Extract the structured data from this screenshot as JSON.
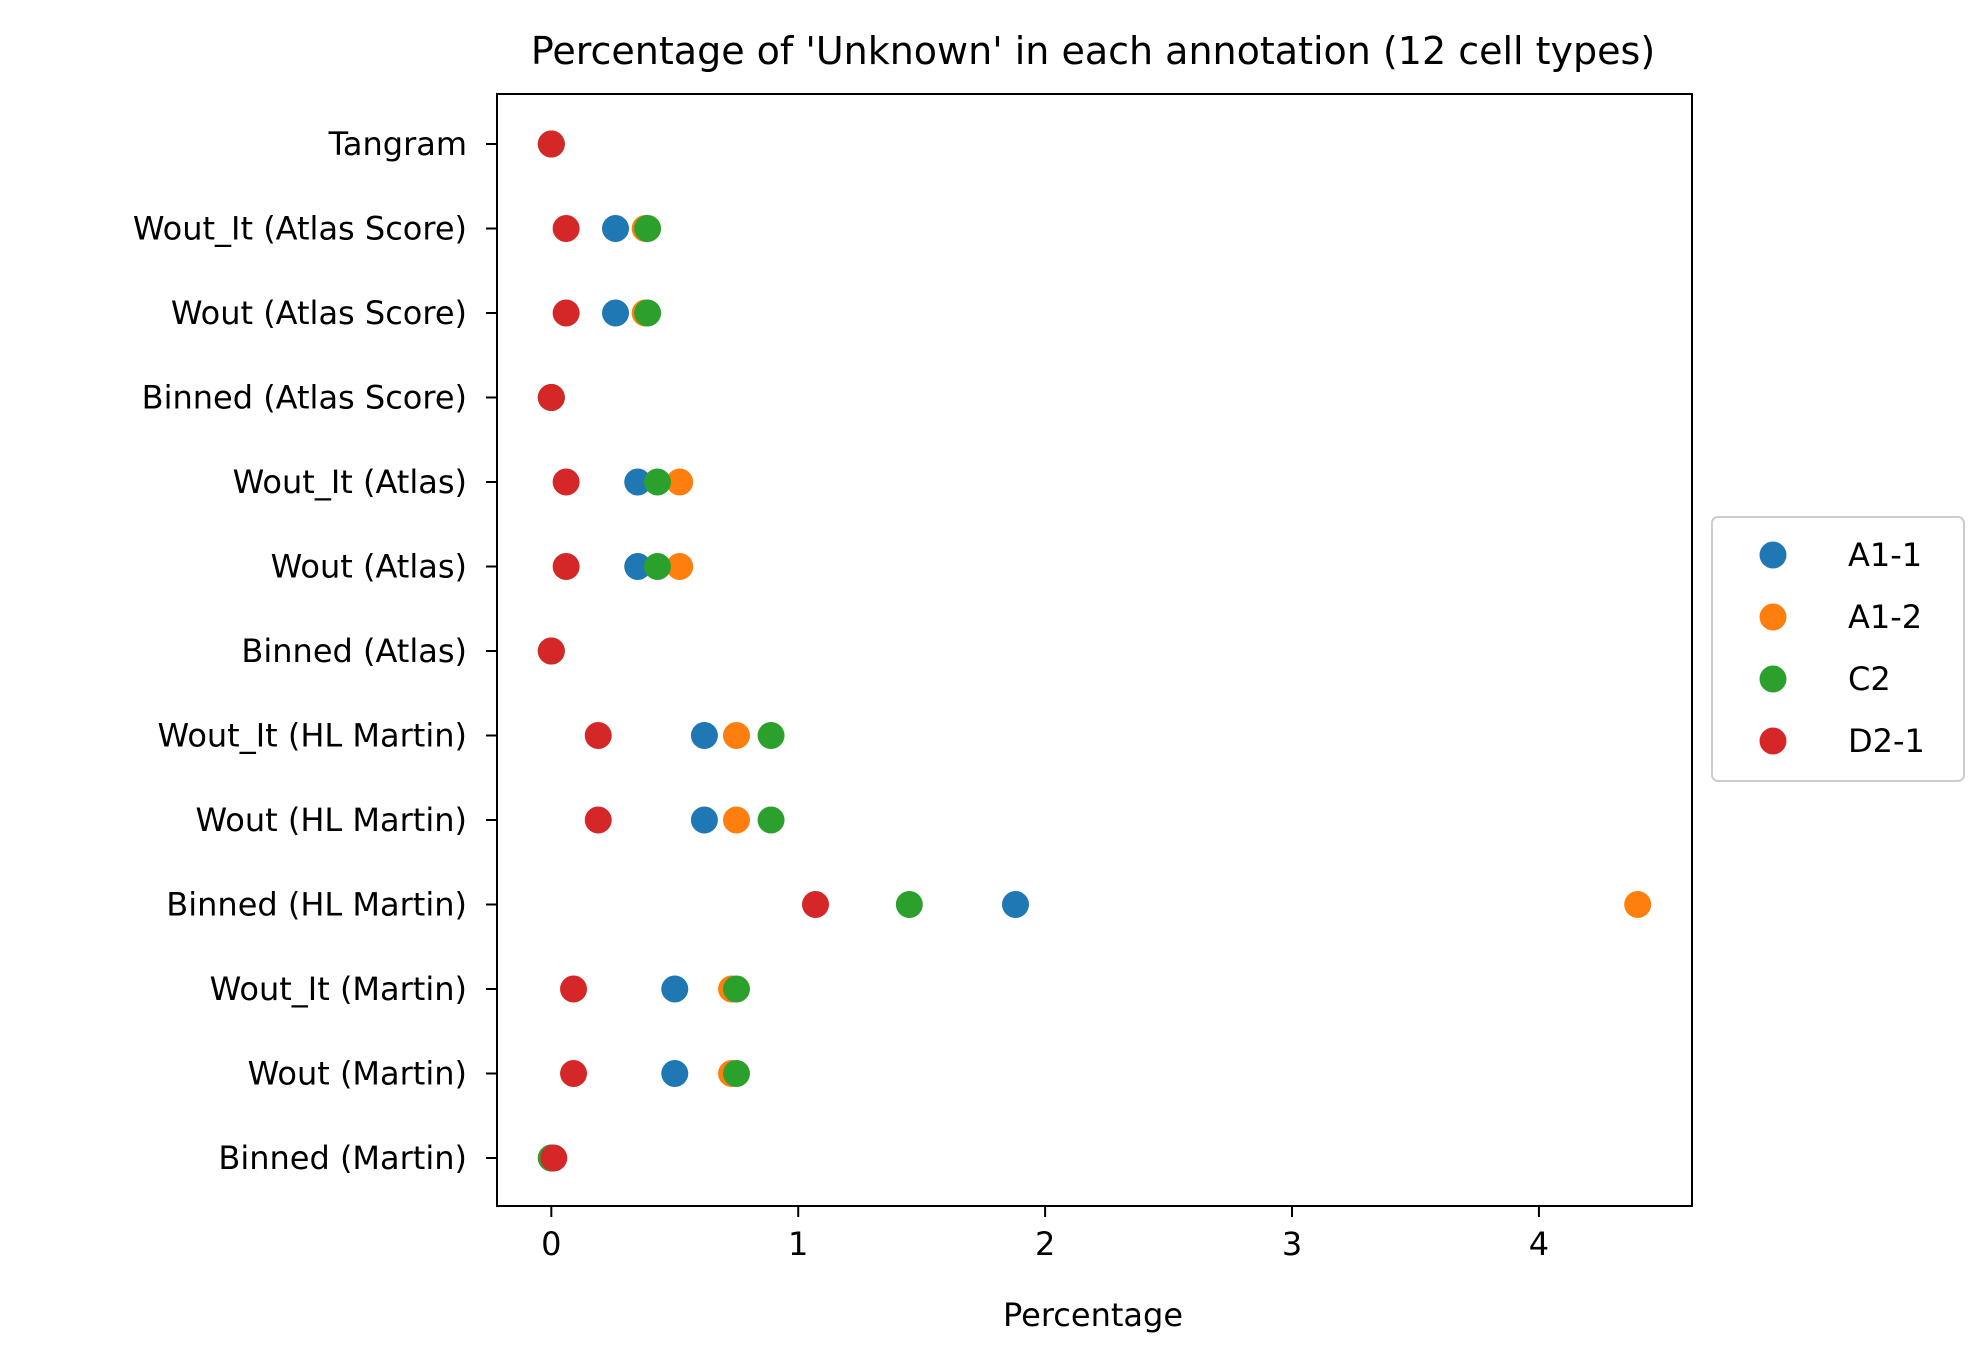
{
  "chart_data": {
    "type": "scatter",
    "title": "Percentage of 'Unknown' in each annotation (12 cell types)",
    "xlabel": "Percentage",
    "ylabel": "",
    "xlim": [
      -0.22,
      4.62
    ],
    "xticks": [
      0,
      1,
      2,
      3,
      4
    ],
    "xtick_labels": [
      "0",
      "1",
      "2",
      "3",
      "4"
    ],
    "grid": false,
    "legend_position": "right",
    "categories": [
      "Tangram",
      "Wout_It (Atlas Score)",
      "Wout (Atlas Score)",
      "Binned (Atlas Score)",
      "Wout_It (Atlas)",
      "Wout (Atlas)",
      "Binned (Atlas)",
      "Wout_It (HL Martin)",
      "Wout (HL Martin)",
      "Binned (HL Martin)",
      "Wout_It (Martin)",
      "Wout (Martin)",
      "Binned (Martin)"
    ],
    "series": [
      {
        "name": "A1-1",
        "color": "#1f77b4",
        "values": [
          0,
          0.26,
          0.26,
          0,
          0.35,
          0.35,
          0,
          0.62,
          0.62,
          1.88,
          0.5,
          0.5,
          0
        ]
      },
      {
        "name": "A1-2",
        "color": "#ff7f0e",
        "values": [
          0,
          0.38,
          0.38,
          0,
          0.52,
          0.52,
          0,
          0.75,
          0.75,
          4.4,
          0.73,
          0.73,
          0
        ]
      },
      {
        "name": "C2",
        "color": "#2ca02c",
        "values": [
          0,
          0.39,
          0.39,
          0,
          0.43,
          0.43,
          0,
          0.89,
          0.89,
          1.45,
          0.75,
          0.75,
          0
        ]
      },
      {
        "name": "D2-1",
        "color": "#d62728",
        "values": [
          0,
          0.06,
          0.06,
          0,
          0.06,
          0.06,
          0,
          0.19,
          0.19,
          1.07,
          0.09,
          0.09,
          0.01
        ]
      }
    ]
  }
}
